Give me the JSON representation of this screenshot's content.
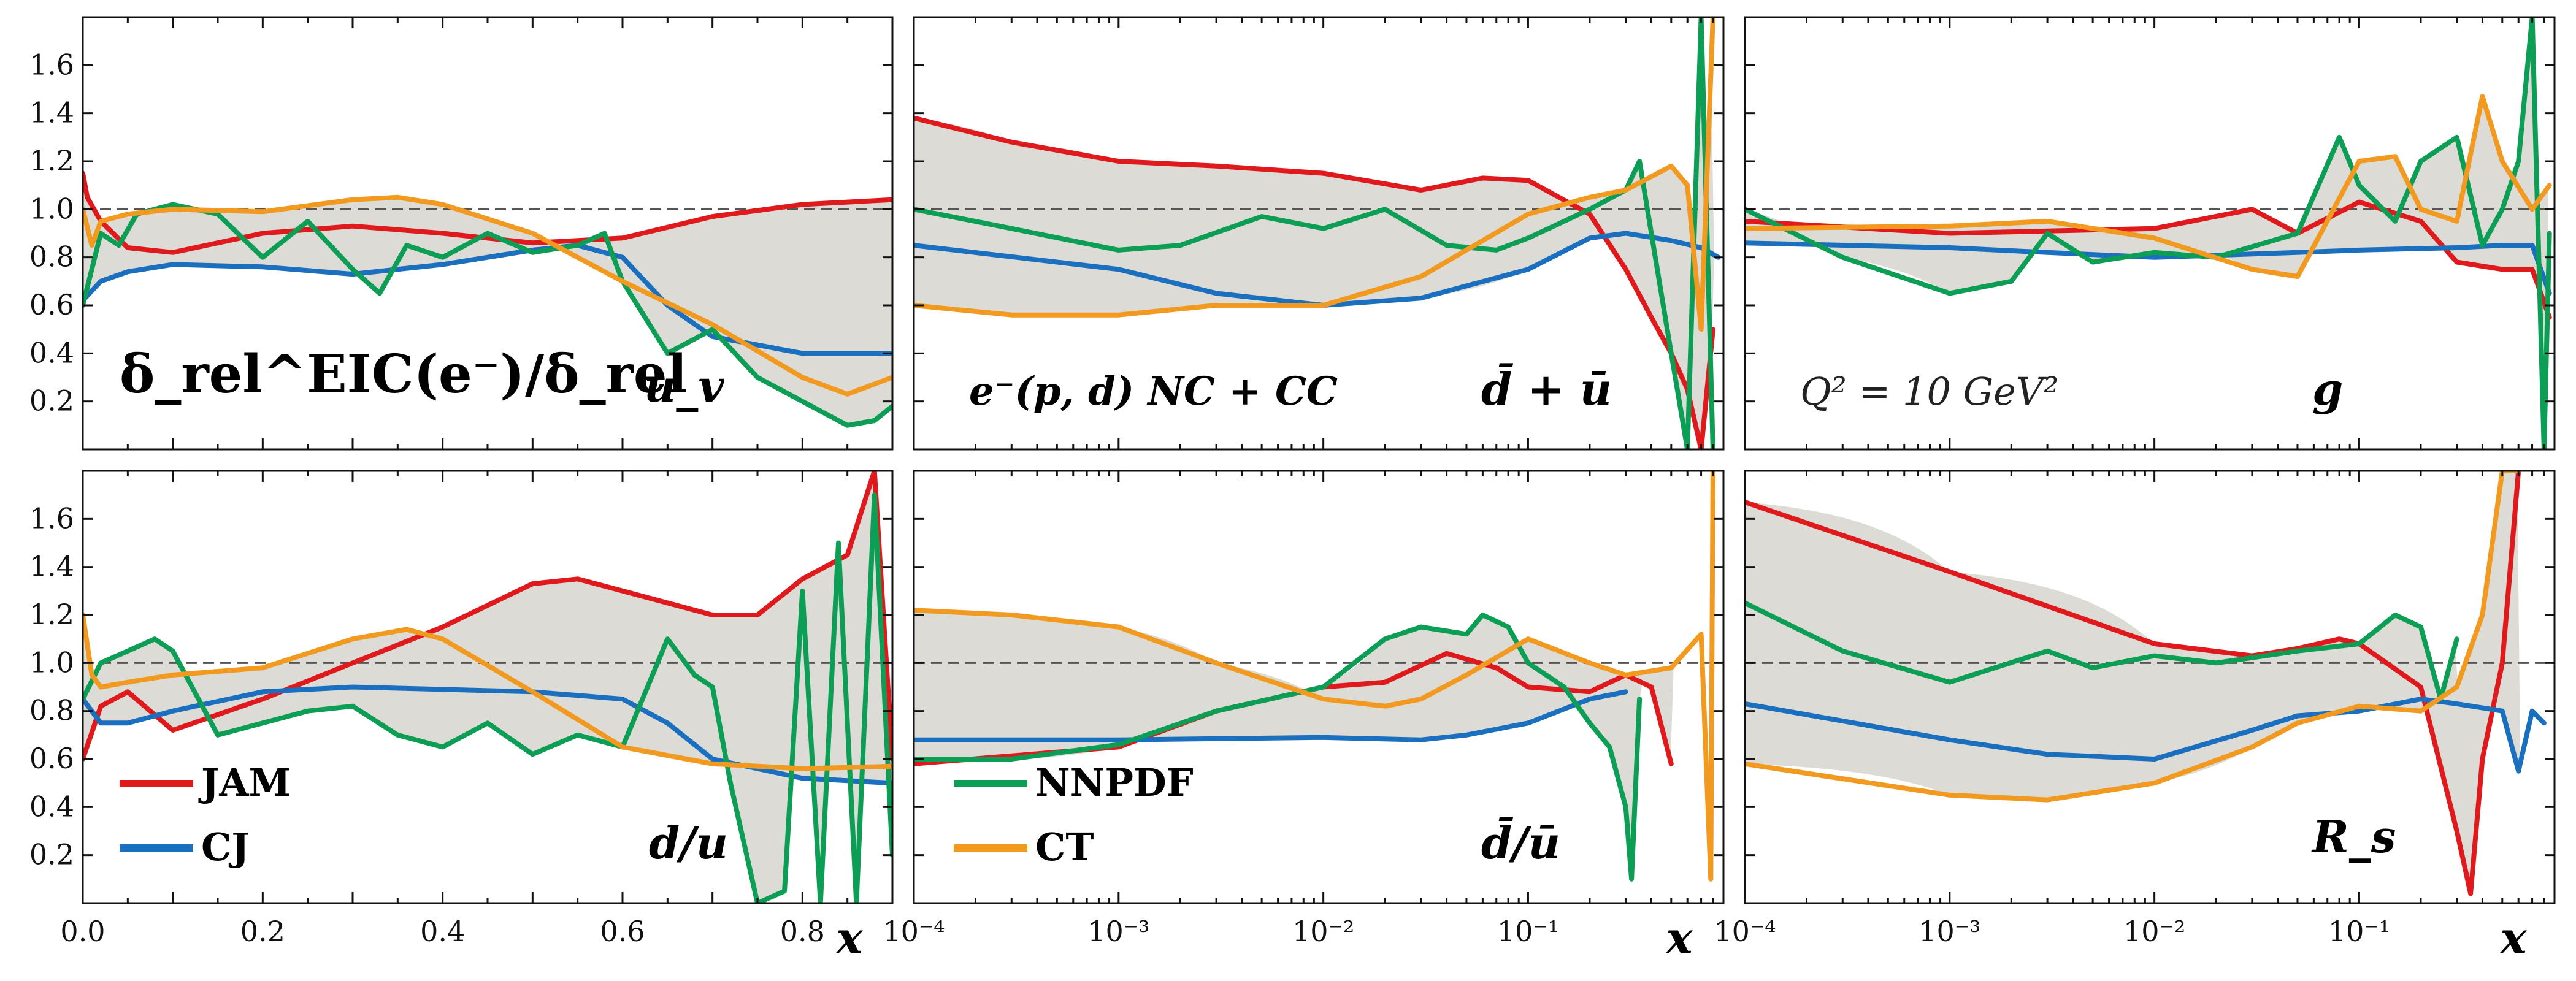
{
  "figure": {
    "colors": {
      "JAM": "#e01a1c",
      "CJ": "#1a6fbf",
      "NNPDF": "#0d9e55",
      "CT": "#f29a1f",
      "band": "#dcdbd6",
      "ref": "#555555"
    },
    "y_ticks": [
      "0.2",
      "0.4",
      "0.6",
      "0.8",
      "1.0",
      "1.2",
      "1.4",
      "1.6"
    ],
    "x_ticks_linear": [
      "0.0",
      "0.2",
      "0.4",
      "0.6",
      "0.8"
    ],
    "x_ticks_log": [
      "10⁻⁴",
      "10⁻³",
      "10⁻²",
      "10⁻¹"
    ],
    "x_label": "x",
    "legend": [
      "JAM",
      "CJ",
      "NNPDF",
      "CT"
    ],
    "annotations": {
      "ratio_label": "δ_rel^EIC(e⁻)/δ_rel",
      "process_label": "e⁻(p, d) NC + CC",
      "q2_label": "Q² = 10 GeV²"
    }
  },
  "chart_data": [
    {
      "type": "line",
      "panel": "uv",
      "title": "u_v",
      "xscale": "linear",
      "xlim": [
        0,
        0.9
      ],
      "ylim": [
        0,
        1.8
      ],
      "series": [
        {
          "name": "JAM",
          "x": [
            0,
            0.005,
            0.02,
            0.05,
            0.1,
            0.2,
            0.3,
            0.4,
            0.5,
            0.6,
            0.7,
            0.8,
            0.9
          ],
          "values": [
            1.15,
            1.05,
            0.95,
            0.84,
            0.82,
            0.9,
            0.93,
            0.9,
            0.86,
            0.88,
            0.97,
            1.02,
            1.04
          ]
        },
        {
          "name": "CJ",
          "x": [
            0,
            0.02,
            0.05,
            0.1,
            0.2,
            0.3,
            0.4,
            0.5,
            0.55,
            0.6,
            0.65,
            0.7,
            0.8,
            0.9
          ],
          "values": [
            0.62,
            0.7,
            0.74,
            0.77,
            0.76,
            0.73,
            0.77,
            0.83,
            0.85,
            0.8,
            0.6,
            0.47,
            0.4,
            0.4
          ]
        },
        {
          "name": "NNPDF",
          "x": [
            0,
            0.02,
            0.04,
            0.06,
            0.08,
            0.1,
            0.15,
            0.2,
            0.25,
            0.3,
            0.33,
            0.36,
            0.4,
            0.45,
            0.5,
            0.55,
            0.58,
            0.6,
            0.65,
            0.7,
            0.75,
            0.8,
            0.85,
            0.88,
            0.9
          ],
          "values": [
            0.6,
            0.9,
            0.85,
            0.98,
            1.0,
            1.02,
            0.98,
            0.8,
            0.95,
            0.75,
            0.65,
            0.85,
            0.8,
            0.9,
            0.82,
            0.85,
            0.9,
            0.7,
            0.4,
            0.5,
            0.3,
            0.2,
            0.1,
            0.12,
            0.18
          ]
        },
        {
          "name": "CT",
          "x": [
            0,
            0.01,
            0.02,
            0.05,
            0.1,
            0.2,
            0.3,
            0.35,
            0.4,
            0.5,
            0.6,
            0.7,
            0.8,
            0.85,
            0.9
          ],
          "values": [
            1.0,
            0.85,
            0.95,
            0.98,
            1.0,
            0.99,
            1.04,
            1.05,
            1.02,
            0.9,
            0.7,
            0.52,
            0.3,
            0.23,
            0.3
          ]
        }
      ]
    },
    {
      "type": "line",
      "panel": "dbar+ubar",
      "title": "d̄ + ū",
      "xscale": "log",
      "xlim": [
        0.0001,
        0.9
      ],
      "ylim": [
        0,
        1.8
      ],
      "series": [
        {
          "name": "JAM",
          "x": [
            0.0001,
            0.0003,
            0.001,
            0.003,
            0.01,
            0.03,
            0.06,
            0.1,
            0.2,
            0.3,
            0.4,
            0.5,
            0.6,
            0.7,
            0.8
          ],
          "values": [
            1.38,
            1.28,
            1.2,
            1.18,
            1.15,
            1.08,
            1.13,
            1.12,
            0.98,
            0.75,
            0.55,
            0.4,
            0.25,
            0.0,
            0.5
          ]
        },
        {
          "name": "CJ",
          "x": [
            0.0001,
            0.001,
            0.003,
            0.01,
            0.03,
            0.1,
            0.2,
            0.3,
            0.5,
            0.7,
            0.85
          ],
          "values": [
            0.85,
            0.75,
            0.65,
            0.6,
            0.63,
            0.75,
            0.88,
            0.9,
            0.87,
            0.84,
            0.8
          ]
        },
        {
          "name": "NNPDF",
          "x": [
            0.0001,
            0.0003,
            0.001,
            0.002,
            0.005,
            0.01,
            0.02,
            0.04,
            0.07,
            0.1,
            0.15,
            0.2,
            0.3,
            0.35,
            0.4,
            0.5,
            0.6,
            0.7,
            0.8
          ],
          "values": [
            1.0,
            0.92,
            0.83,
            0.85,
            0.97,
            0.92,
            1.0,
            0.85,
            0.83,
            0.88,
            0.95,
            1.0,
            1.08,
            1.2,
            0.9,
            0.4,
            0.0,
            1.8,
            0.0
          ]
        },
        {
          "name": "CT",
          "x": [
            0.0001,
            0.0003,
            0.001,
            0.003,
            0.01,
            0.03,
            0.1,
            0.2,
            0.3,
            0.5,
            0.6,
            0.7,
            0.8
          ],
          "values": [
            0.6,
            0.56,
            0.56,
            0.6,
            0.6,
            0.72,
            0.98,
            1.05,
            1.08,
            1.18,
            1.1,
            0.5,
            1.8
          ]
        }
      ]
    },
    {
      "type": "line",
      "panel": "g",
      "title": "g",
      "xscale": "log",
      "xlim": [
        0.0001,
        0.9
      ],
      "ylim": [
        0,
        1.8
      ],
      "series": [
        {
          "name": "JAM",
          "x": [
            0.0001,
            0.001,
            0.01,
            0.03,
            0.05,
            0.1,
            0.2,
            0.3,
            0.5,
            0.7,
            0.85
          ],
          "values": [
            0.95,
            0.9,
            0.92,
            1.0,
            0.9,
            1.03,
            0.95,
            0.78,
            0.75,
            0.75,
            0.55
          ]
        },
        {
          "name": "CJ",
          "x": [
            0.0001,
            0.001,
            0.003,
            0.01,
            0.05,
            0.1,
            0.3,
            0.5,
            0.7,
            0.85
          ],
          "values": [
            0.86,
            0.84,
            0.82,
            0.8,
            0.82,
            0.83,
            0.84,
            0.85,
            0.85,
            0.65
          ]
        },
        {
          "name": "NNPDF",
          "x": [
            0.0001,
            0.0003,
            0.001,
            0.002,
            0.003,
            0.005,
            0.01,
            0.02,
            0.05,
            0.08,
            0.1,
            0.15,
            0.2,
            0.3,
            0.4,
            0.5,
            0.6,
            0.7,
            0.8,
            0.85
          ],
          "values": [
            1.0,
            0.8,
            0.65,
            0.7,
            0.9,
            0.78,
            0.82,
            0.8,
            0.9,
            1.3,
            1.1,
            0.95,
            1.2,
            1.3,
            0.85,
            1.0,
            1.2,
            1.8,
            0.0,
            0.9
          ]
        },
        {
          "name": "CT",
          "x": [
            0.0001,
            0.001,
            0.003,
            0.01,
            0.03,
            0.05,
            0.1,
            0.15,
            0.2,
            0.3,
            0.4,
            0.5,
            0.7,
            0.85
          ],
          "values": [
            0.92,
            0.93,
            0.95,
            0.88,
            0.75,
            0.72,
            1.2,
            1.22,
            1.0,
            0.95,
            1.47,
            1.2,
            1.0,
            1.1
          ]
        }
      ]
    },
    {
      "type": "line",
      "panel": "d/u",
      "title": "d/u",
      "xscale": "linear",
      "xlim": [
        0,
        0.9
      ],
      "ylim": [
        0,
        1.8
      ],
      "series": [
        {
          "name": "JAM",
          "x": [
            0,
            0.02,
            0.05,
            0.1,
            0.2,
            0.3,
            0.4,
            0.5,
            0.55,
            0.6,
            0.7,
            0.75,
            0.8,
            0.85,
            0.88,
            0.9
          ],
          "values": [
            0.6,
            0.82,
            0.88,
            0.72,
            0.85,
            1.0,
            1.15,
            1.33,
            1.35,
            1.3,
            1.2,
            1.2,
            1.35,
            1.45,
            1.8,
            0.6
          ]
        },
        {
          "name": "CJ",
          "x": [
            0,
            0.02,
            0.05,
            0.1,
            0.2,
            0.3,
            0.4,
            0.5,
            0.6,
            0.65,
            0.7,
            0.8,
            0.9
          ],
          "values": [
            0.85,
            0.75,
            0.75,
            0.8,
            0.88,
            0.9,
            0.89,
            0.88,
            0.85,
            0.75,
            0.6,
            0.52,
            0.5
          ]
        },
        {
          "name": "NNPDF",
          "x": [
            0,
            0.02,
            0.05,
            0.08,
            0.1,
            0.15,
            0.2,
            0.25,
            0.3,
            0.35,
            0.4,
            0.45,
            0.5,
            0.55,
            0.6,
            0.65,
            0.68,
            0.7,
            0.72,
            0.75,
            0.78,
            0.8,
            0.82,
            0.84,
            0.86,
            0.88,
            0.9
          ],
          "values": [
            0.85,
            1.0,
            1.05,
            1.1,
            1.05,
            0.7,
            0.75,
            0.8,
            0.82,
            0.7,
            0.65,
            0.75,
            0.62,
            0.7,
            0.65,
            1.1,
            0.95,
            0.9,
            0.5,
            0.0,
            0.05,
            1.3,
            0.0,
            1.5,
            0.0,
            1.7,
            0.2
          ]
        },
        {
          "name": "CT",
          "x": [
            0,
            0.01,
            0.02,
            0.05,
            0.1,
            0.2,
            0.3,
            0.36,
            0.4,
            0.5,
            0.6,
            0.7,
            0.8,
            0.9
          ],
          "values": [
            1.2,
            0.95,
            0.9,
            0.92,
            0.95,
            0.98,
            1.1,
            1.14,
            1.1,
            0.88,
            0.65,
            0.58,
            0.56,
            0.57
          ]
        }
      ]
    },
    {
      "type": "line",
      "panel": "dbar/ubar",
      "title": "d̄/ū",
      "xscale": "log",
      "xlim": [
        0.0001,
        0.9
      ],
      "ylim": [
        0,
        1.8
      ],
      "series": [
        {
          "name": "JAM",
          "x": [
            0.0001,
            0.001,
            0.003,
            0.01,
            0.02,
            0.04,
            0.07,
            0.1,
            0.2,
            0.3,
            0.4,
            0.5
          ],
          "values": [
            0.58,
            0.65,
            0.8,
            0.9,
            0.92,
            1.04,
            0.98,
            0.9,
            0.88,
            0.95,
            0.9,
            0.58
          ]
        },
        {
          "name": "CJ",
          "x": [
            0.0001,
            0.001,
            0.01,
            0.03,
            0.05,
            0.1,
            0.2,
            0.3
          ],
          "values": [
            0.68,
            0.68,
            0.69,
            0.68,
            0.7,
            0.75,
            0.85,
            0.88
          ]
        },
        {
          "name": "NNPDF",
          "x": [
            0.0001,
            0.0003,
            0.001,
            0.003,
            0.01,
            0.02,
            0.03,
            0.05,
            0.06,
            0.08,
            0.1,
            0.15,
            0.2,
            0.25,
            0.3,
            0.32,
            0.35
          ],
          "values": [
            0.6,
            0.6,
            0.66,
            0.8,
            0.9,
            1.1,
            1.15,
            1.12,
            1.2,
            1.15,
            1.0,
            0.9,
            0.75,
            0.65,
            0.4,
            0.1,
            0.85
          ]
        },
        {
          "name": "CT",
          "x": [
            0.0001,
            0.0003,
            0.001,
            0.003,
            0.01,
            0.02,
            0.03,
            0.05,
            0.1,
            0.2,
            0.3,
            0.5,
            0.7,
            0.78,
            0.8
          ],
          "values": [
            1.22,
            1.2,
            1.15,
            1.0,
            0.85,
            0.82,
            0.85,
            0.95,
            1.1,
            1.0,
            0.95,
            0.98,
            1.12,
            0.1,
            1.8
          ]
        }
      ]
    },
    {
      "type": "line",
      "panel": "Rs",
      "title": "R_s",
      "xscale": "log",
      "xlim": [
        0.0001,
        0.9
      ],
      "ylim": [
        0,
        1.8
      ],
      "series": [
        {
          "name": "JAM",
          "x": [
            0.0001,
            0.001,
            0.01,
            0.03,
            0.05,
            0.08,
            0.1,
            0.2,
            0.3,
            0.35,
            0.4,
            0.5,
            0.6
          ],
          "values": [
            1.67,
            1.38,
            1.08,
            1.03,
            1.06,
            1.1,
            1.08,
            0.9,
            0.3,
            0.04,
            0.6,
            1.0,
            1.8
          ]
        },
        {
          "name": "CJ",
          "x": [
            0.0001,
            0.001,
            0.003,
            0.01,
            0.03,
            0.05,
            0.1,
            0.2,
            0.3,
            0.5,
            0.6,
            0.7,
            0.8
          ],
          "values": [
            0.83,
            0.68,
            0.62,
            0.6,
            0.72,
            0.78,
            0.8,
            0.85,
            0.83,
            0.8,
            0.55,
            0.8,
            0.75
          ]
        },
        {
          "name": "NNPDF",
          "x": [
            0.0001,
            0.0003,
            0.001,
            0.003,
            0.005,
            0.01,
            0.02,
            0.05,
            0.1,
            0.15,
            0.2,
            0.25,
            0.3
          ],
          "values": [
            1.25,
            1.05,
            0.92,
            1.05,
            0.98,
            1.03,
            1.0,
            1.05,
            1.08,
            1.2,
            1.15,
            0.85,
            1.1
          ]
        },
        {
          "name": "CT",
          "x": [
            0.0001,
            0.001,
            0.003,
            0.01,
            0.03,
            0.05,
            0.1,
            0.2,
            0.3,
            0.4,
            0.5,
            0.6
          ],
          "values": [
            0.58,
            0.45,
            0.43,
            0.5,
            0.65,
            0.75,
            0.82,
            0.8,
            0.9,
            1.2,
            1.8,
            1.8
          ]
        }
      ]
    }
  ]
}
